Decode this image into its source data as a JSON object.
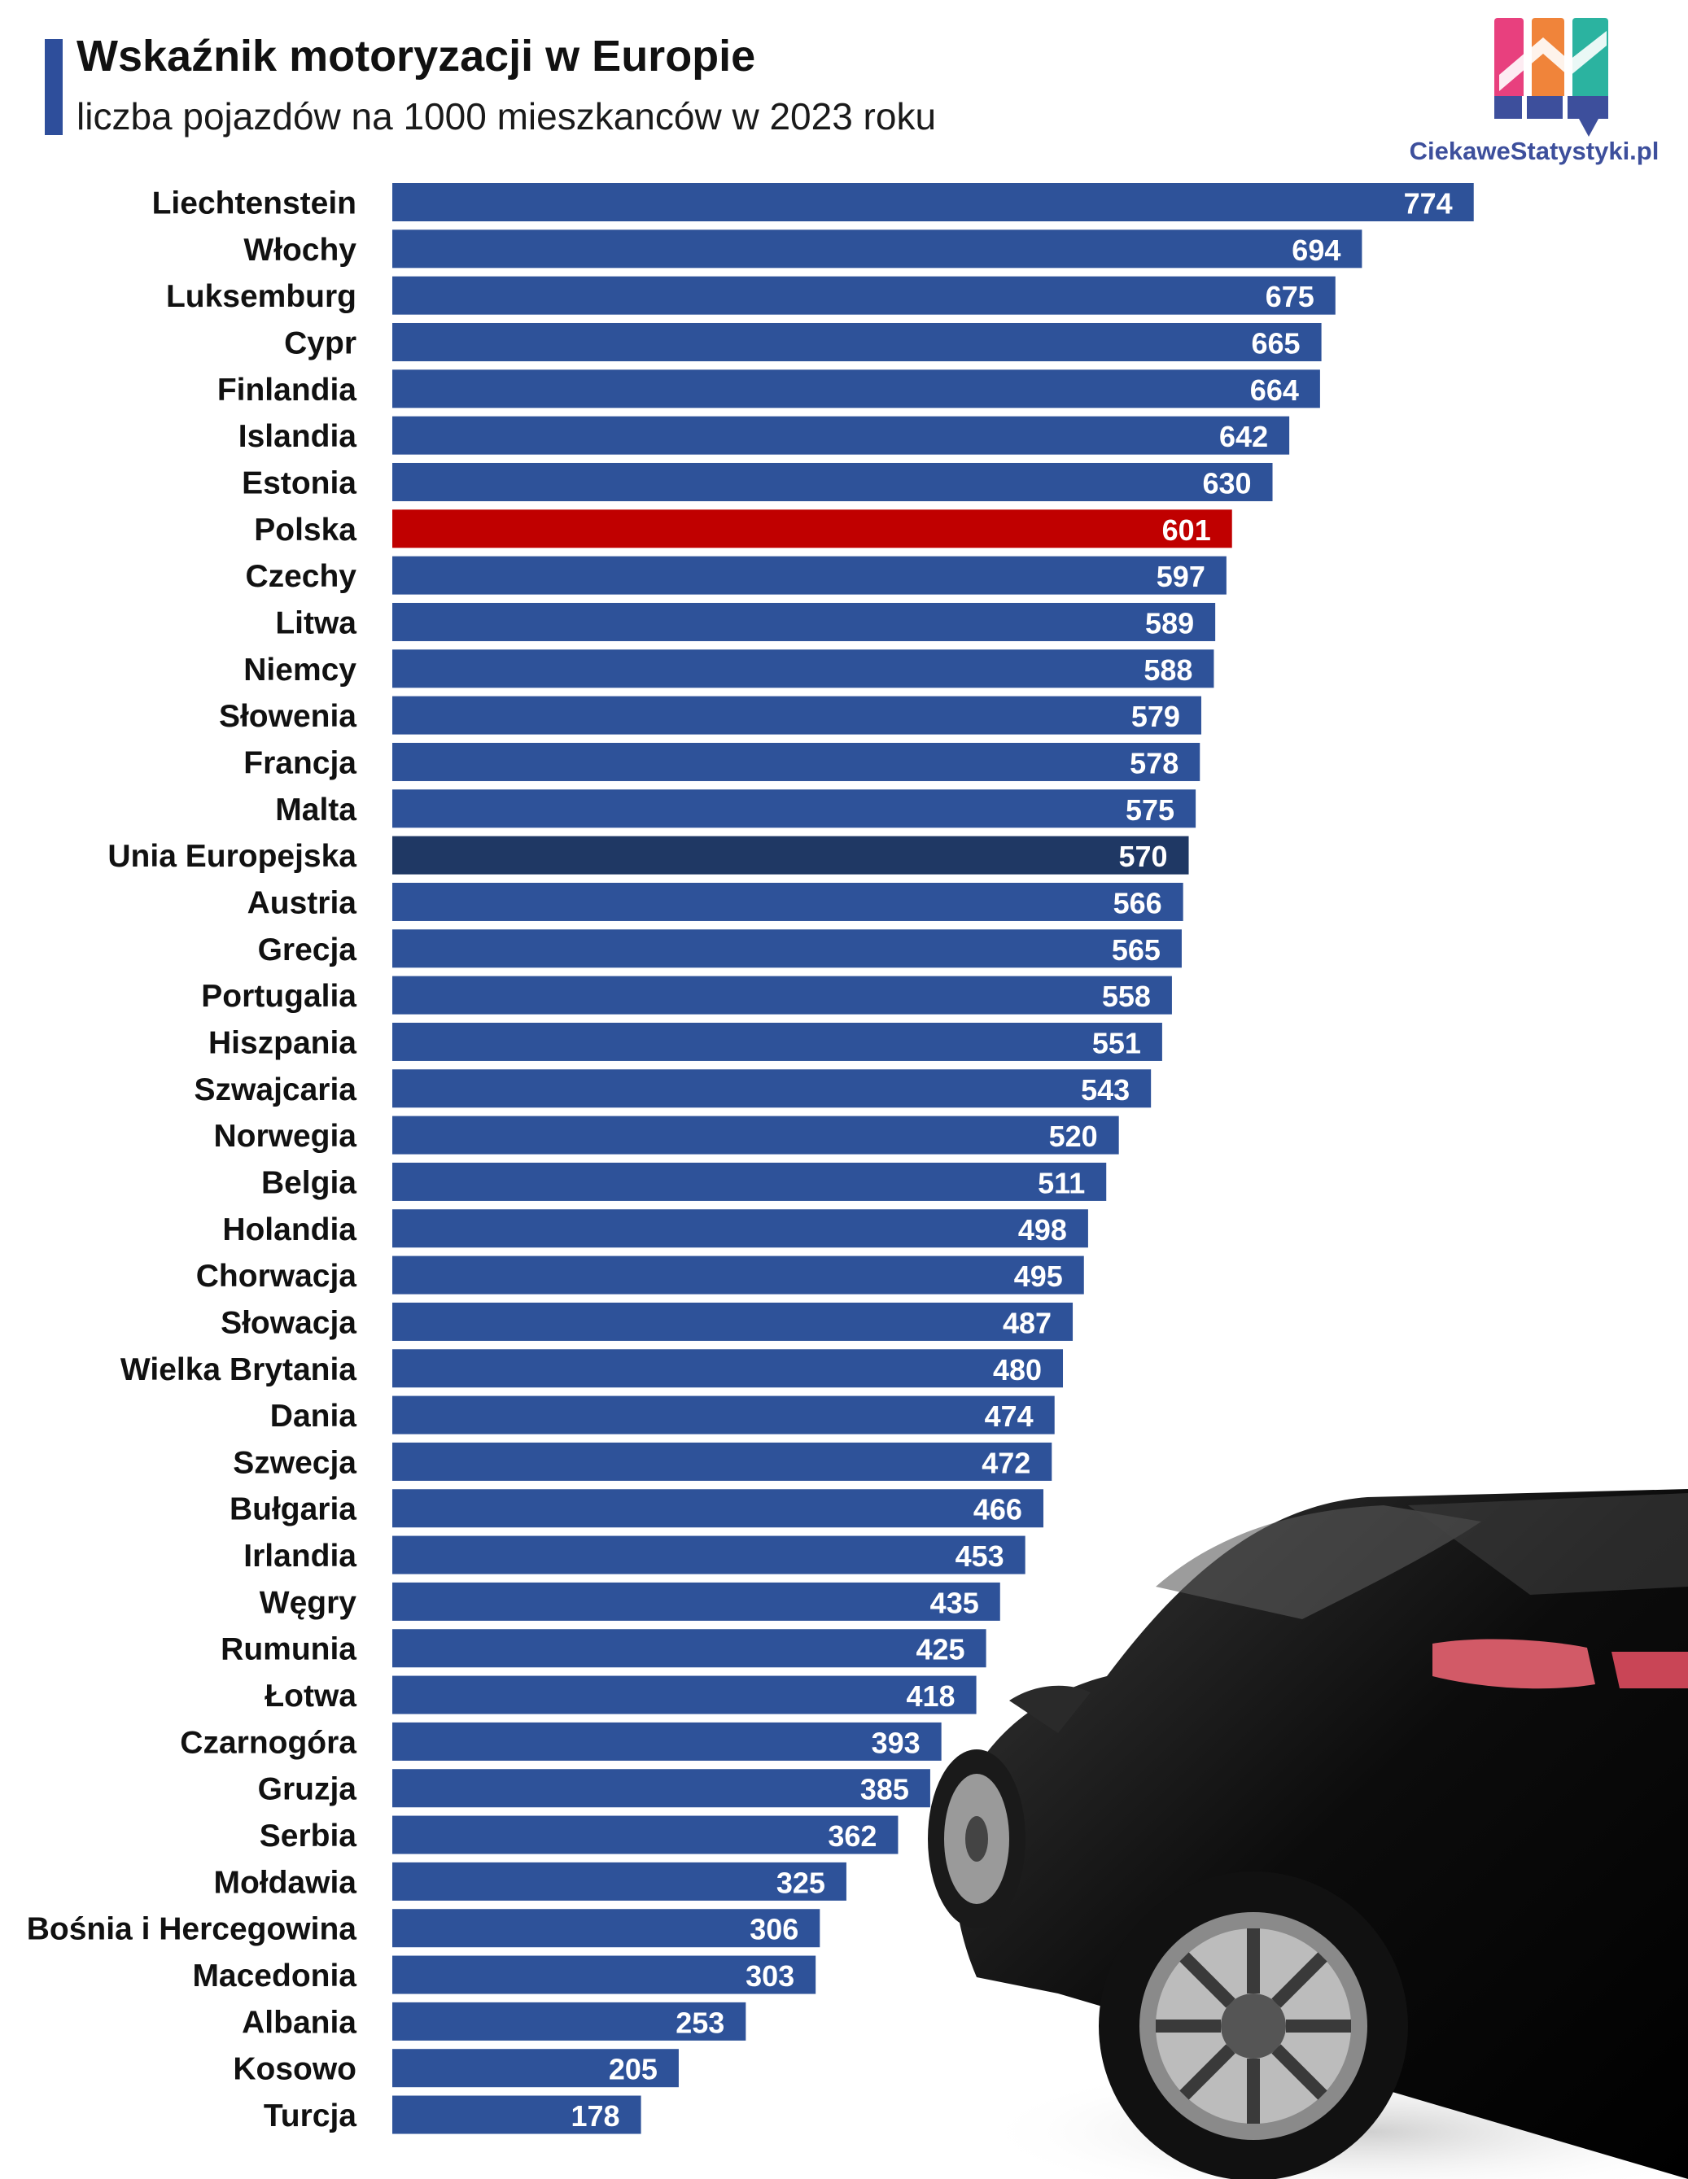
{
  "header": {
    "title": "Wskaźnik motoryzacji w Europie",
    "subtitle": "liczba pojazdów na 1000 mieszkanców w 2023 roku"
  },
  "logo": {
    "text": "CiekaweStatystyki.pl",
    "icon": "bar-chart-logo-icon"
  },
  "colors": {
    "bar": "#2e5299",
    "highlight_poland": "#c00000",
    "highlight_eu": "#1f3864",
    "accent": "#2e4e9b",
    "label": "#111111",
    "value": "#ffffff"
  },
  "chart_data": {
    "type": "bar",
    "orientation": "horizontal",
    "title": "Wskaźnik motoryzacji w Europie",
    "subtitle": "liczba pojazdów na 1000 mieszkanców w 2023 roku",
    "xlim": [
      0,
      800
    ],
    "grid": false,
    "legend": "none",
    "categories": [
      "Liechtenstein",
      "Włochy",
      "Luksemburg",
      "Cypr",
      "Finlandia",
      "Islandia",
      "Estonia",
      "Polska",
      "Czechy",
      "Litwa",
      "Niemcy",
      "Słowenia",
      "Francja",
      "Malta",
      "Unia Europejska",
      "Austria",
      "Grecja",
      "Portugalia",
      "Hiszpania",
      "Szwajcaria",
      "Norwegia",
      "Belgia",
      "Holandia",
      "Chorwacja",
      "Słowacja",
      "Wielka Brytania",
      "Dania",
      "Szwecja",
      "Bułgaria",
      "Irlandia",
      "Węgry",
      "Rumunia",
      "Łotwa",
      "Czarnogóra",
      "Gruzja",
      "Serbia",
      "Mołdawia",
      "Bośnia i Hercegowina",
      "Macedonia",
      "Albania",
      "Kosowo",
      "Turcja"
    ],
    "values": [
      774,
      694,
      675,
      665,
      664,
      642,
      630,
      601,
      597,
      589,
      588,
      579,
      578,
      575,
      570,
      566,
      565,
      558,
      551,
      543,
      520,
      511,
      498,
      495,
      487,
      480,
      474,
      472,
      466,
      453,
      435,
      425,
      418,
      393,
      385,
      362,
      325,
      306,
      303,
      253,
      205,
      178
    ],
    "highlights": {
      "Polska": "highlight_poland",
      "Unia Europejska": "highlight_eu"
    }
  }
}
